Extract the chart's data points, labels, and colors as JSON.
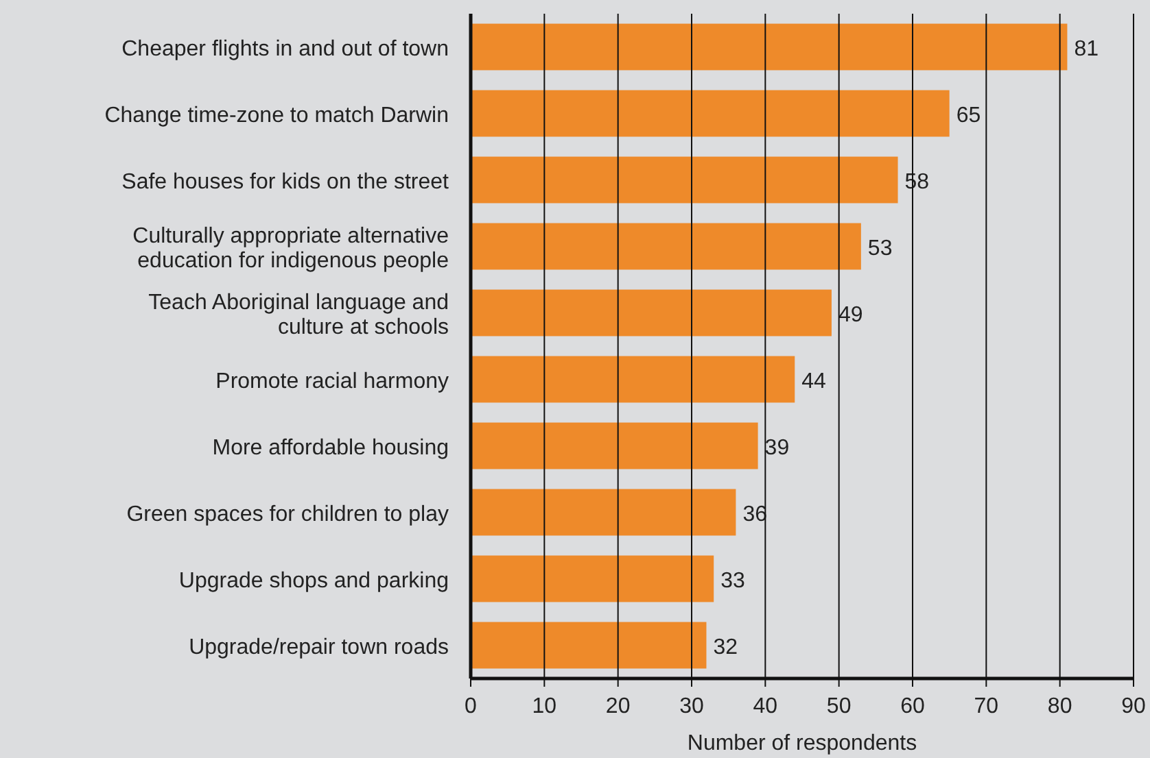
{
  "chart_data": {
    "type": "bar",
    "orientation": "horizontal",
    "xlabel": "Number of respondents",
    "categories": [
      "Cheaper flights in and out of town",
      "Change time-zone to match Darwin",
      "Safe houses for kids on the street",
      "Culturally appropriate alternative\neducation for indigenous people",
      "Teach Aboriginal language and\nculture at schools",
      "Promote racial harmony",
      "More affordable housing",
      "Green spaces for children to play",
      "Upgrade shops and parking",
      "Upgrade/repair town roads"
    ],
    "values": [
      81,
      65,
      58,
      53,
      49,
      44,
      39,
      36,
      33,
      32
    ],
    "color": "#ee8a2a",
    "xlim": [
      0,
      90
    ],
    "xticks": [
      0,
      10,
      20,
      30,
      40,
      50,
      60,
      70,
      80,
      90
    ],
    "grid": "x",
    "data_labels": true
  }
}
